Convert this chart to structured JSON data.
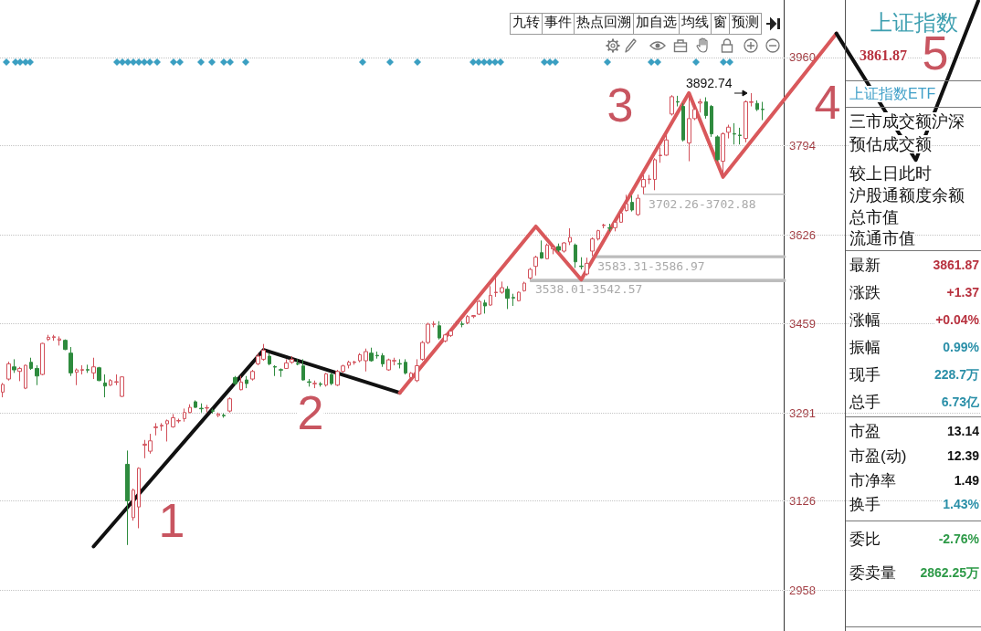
{
  "chart_data": [
    {
      "type": "candlestick",
      "categories": [
        null,
        null,
        null,
        null,
        null,
        null,
        null,
        null,
        null,
        null,
        null,
        null,
        null,
        null,
        null,
        null,
        null,
        null,
        null,
        null,
        null,
        null,
        null,
        null,
        null,
        null,
        null,
        null,
        null,
        null,
        null,
        null,
        null,
        null,
        null,
        null,
        null,
        null,
        null,
        null,
        null,
        null,
        null,
        null,
        null,
        null,
        null,
        null,
        null,
        null,
        null,
        null,
        null,
        null,
        null,
        null,
        null,
        null,
        null,
        null,
        null,
        null,
        null,
        null,
        null,
        null,
        null,
        null,
        null,
        null,
        null,
        null,
        null,
        null,
        null,
        null,
        null,
        null,
        null,
        null,
        null,
        null,
        null,
        null,
        null,
        null,
        null,
        null,
        null,
        null,
        null,
        null,
        null,
        null,
        null,
        null,
        null,
        null,
        null,
        null,
        null,
        null,
        null,
        null,
        null,
        null,
        null,
        null,
        null,
        null,
        null,
        null,
        null,
        null,
        null,
        null,
        null,
        null,
        null,
        null,
        null,
        null,
        null,
        null,
        null,
        null,
        null,
        null,
        null,
        null,
        null,
        null,
        null,
        null,
        null,
        null,
        null,
        null,
        null,
        null,
        null,
        null,
        null,
        null,
        null,
        null,
        null,
        null,
        null,
        null,
        null,
        null,
        null,
        null,
        null,
        null,
        null,
        null,
        null,
        null,
        null,
        null,
        null,
        null,
        null,
        null,
        null,
        null,
        null,
        null,
        null,
        null,
        null
      ],
      "ohlc": [
        [
          3330.4,
          3347.6,
          3320.6,
          3344.7
        ],
        [
          3355.0,
          3387.6,
          3352.1,
          3383.6
        ],
        [
          3377.9,
          3392.2,
          3366.5,
          3372.2
        ],
        [
          3369.3,
          3377.9,
          3351.0,
          3375.0
        ],
        [
          3337.8,
          3382.0,
          3336.0,
          3380.8
        ],
        [
          3386.5,
          3395.1,
          3372.2,
          3375.0
        ],
        [
          3375.0,
          3380.8,
          3343.5,
          3360.7
        ],
        [
          3363.6,
          3423.0,
          3362.0,
          3422.0
        ],
        [
          3429.5,
          3438.1,
          3426.6,
          3433.5
        ],
        [
          3433.0,
          3438.1,
          3427.0,
          3434.5
        ],
        [
          3428.0,
          3435.2,
          3418.0,
          3430.5
        ],
        [
          3427.8,
          3429.5,
          3409.4,
          3410.6
        ],
        [
          3403.7,
          3415.2,
          3360.7,
          3366.5
        ],
        [
          3367.6,
          3375.0,
          3343.5,
          3372.2
        ],
        [
          3371.5,
          3380.8,
          3363.6,
          3372.8
        ],
        [
          3372.8,
          3381.9,
          3366.5,
          3371.8
        ],
        [
          3366.5,
          3395.1,
          3355.0,
          3377.9
        ],
        [
          3376.2,
          3377.9,
          3351.0,
          3352.1
        ],
        [
          3347.6,
          3363.6,
          3320.6,
          3341.8
        ],
        [
          3343.5,
          3355.0,
          3341.8,
          3352.1
        ],
        [
          3349.0,
          3363.6,
          3343.5,
          3350.0
        ],
        [
          3322.4,
          3360.0,
          3321.0,
          3359.0
        ],
        [
          3194.6,
          3220.4,
          3042.8,
          3125.8
        ],
        [
          3094.3,
          3148.8,
          3088.6,
          3145.9
        ],
        [
          3114.4,
          3188.9,
          3074.3,
          3187.1
        ],
        [
          3230.5,
          3240.4,
          3206.0,
          3232.5
        ],
        [
          3219.2,
          3251.9,
          3214.6,
          3238.7
        ],
        [
          3263.5,
          3272.0,
          3249.0,
          3265.0
        ],
        [
          3266.5,
          3272.0,
          3257.6,
          3268.0
        ],
        [
          3270.8,
          3278.8,
          3237.5,
          3276.5
        ],
        [
          3265.1,
          3289.1,
          3263.3,
          3282.2
        ],
        [
          3276.0,
          3280.5,
          3272.0,
          3277.0
        ],
        [
          3280.5,
          3299.4,
          3274.8,
          3292.0
        ],
        [
          3292.0,
          3307.5,
          3290.8,
          3301.7
        ],
        [
          3312.2,
          3314.9,
          3300.6,
          3301.7
        ],
        [
          3300.0,
          3309.2,
          3292.0,
          3299.0
        ],
        [
          3300.3,
          3306.3,
          3292.0,
          3301.2
        ],
        [
          3295.5,
          3299.0,
          3290.0,
          3294.5
        ],
        [
          3286.3,
          3292.0,
          3283.4,
          3289.1
        ],
        [
          3286.8,
          3290.3,
          3282.2,
          3285.8
        ],
        [
          3294.8,
          3320.6,
          3292.0,
          3317.8
        ],
        [
          3357.9,
          3360.7,
          3343.5,
          3346.4
        ],
        [
          3334.9,
          3360.7,
          3333.8,
          3349.3
        ],
        [
          3353.3,
          3360.7,
          3337.8,
          3346.4
        ],
        [
          3355.0,
          3372.2,
          3352.1,
          3369.3
        ],
        [
          3383.6,
          3403.7,
          3380.8,
          3398.0
        ],
        [
          3392.2,
          3420.9,
          3389.4,
          3409.4
        ],
        [
          3398.0,
          3403.7,
          3380.8,
          3383.6
        ],
        [
          3378.5,
          3380.8,
          3360.7,
          3377.3
        ],
        [
          3372.7,
          3375.0,
          3359.0,
          3371.7
        ],
        [
          3375.0,
          3392.2,
          3374.4,
          3385.4
        ],
        [
          3386.5,
          3398.0,
          3383.6,
          3392.2
        ],
        [
          3384.2,
          3392.2,
          3380.8,
          3383.0
        ],
        [
          3379.6,
          3392.2,
          3352.1,
          3353.3
        ],
        [
          3349.8,
          3355.0,
          3340.7,
          3348.8
        ],
        [
          3346.0,
          3352.1,
          3337.8,
          3347.0
        ],
        [
          3345.8,
          3349.3,
          3340.7,
          3344.8
        ],
        [
          3343.5,
          3366.5,
          3340.7,
          3364.7
        ],
        [
          3363.6,
          3366.5,
          3343.5,
          3346.4
        ],
        [
          3343.5,
          3372.2,
          3341.8,
          3369.3
        ],
        [
          3369.3,
          3381.9,
          3366.5,
          3379.6
        ],
        [
          3380.8,
          3389.4,
          3375.0,
          3386.5
        ],
        [
          3386.0,
          3389.4,
          3381.9,
          3387.0
        ],
        [
          3389.4,
          3403.7,
          3386.5,
          3400.8
        ],
        [
          3389.4,
          3412.3,
          3369.3,
          3406.6
        ],
        [
          3403.7,
          3414.0,
          3387.6,
          3389.4
        ],
        [
          3399.6,
          3406.6,
          3393.4,
          3398.6
        ],
        [
          3399.1,
          3403.7,
          3377.9,
          3383.6
        ],
        [
          3372.2,
          3393.4,
          3370.5,
          3391.1
        ],
        [
          3388.9,
          3395.1,
          3380.8,
          3389.9
        ],
        [
          3384.1,
          3392.2,
          3375.0,
          3383.1
        ],
        [
          3386.5,
          3392.2,
          3363.5,
          3366.4
        ],
        [
          3358.0,
          3368.0,
          3352.0,
          3366.0
        ],
        [
          3352.0,
          3392.2,
          3349.2,
          3380.0
        ],
        [
          3392.2,
          3426.6,
          3389.3,
          3423.7
        ],
        [
          3423.7,
          3460.9,
          3420.8,
          3458.1
        ],
        [
          3457.6,
          3463.8,
          3452.3,
          3458.6
        ],
        [
          3455.2,
          3463.8,
          3429.4,
          3432.3
        ],
        [
          3426.6,
          3440.0,
          3424.0,
          3438.0
        ],
        [
          3437.0,
          3448.0,
          3434.0,
          3445.0
        ],
        [
          3460.5,
          3463.8,
          3455.2,
          3461.5
        ],
        [
          3458.6,
          3463.8,
          3452.3,
          3457.6
        ],
        [
          3460.9,
          3475.3,
          3458.1,
          3472.4
        ],
        [
          3472.5,
          3475.3,
          3469.5,
          3474.5
        ],
        [
          3477.0,
          3503.9,
          3475.3,
          3501.0
        ],
        [
          3498.2,
          3503.9,
          3478.1,
          3492.5
        ],
        [
          3494.2,
          3529.7,
          3492.5,
          3512.5
        ],
        [
          3517.4,
          3549.7,
          3509.6,
          3518.4
        ],
        [
          3518.2,
          3538.3,
          3515.4,
          3526.8
        ],
        [
          3523.9,
          3529.7,
          3486.7,
          3506.8
        ],
        [
          3508.4,
          3515.4,
          3492.5,
          3507.4
        ],
        [
          3502.2,
          3519.4,
          3501.0,
          3518.2
        ],
        [
          3521.1,
          3538.01,
          3519.4,
          3535.4
        ],
        [
          3545.0,
          3564.1,
          3542.57,
          3561.2
        ],
        [
          3566.9,
          3587.0,
          3549.7,
          3584.1
        ],
        [
          3592.7,
          3615.6,
          3581.3,
          3582.4
        ],
        [
          3581.3,
          3609.9,
          3580.1,
          3607.0
        ],
        [
          3600.0,
          3604.2,
          3589.8,
          3602.5
        ],
        [
          3604.2,
          3609.9,
          3593.9,
          3597.3
        ],
        [
          3595.6,
          3612.8,
          3592.7,
          3611.0
        ],
        [
          3612.8,
          3638.5,
          3607.0,
          3621.4
        ],
        [
          3607.0,
          3609.9,
          3564.1,
          3575.5
        ],
        [
          3567.5,
          3584.1,
          3561.2,
          3566.5
        ],
        [
          3552.6,
          3583.31,
          3549.7,
          3572.7
        ],
        [
          3595.6,
          3621.4,
          3586.97,
          3618.5
        ],
        [
          3618.5,
          3635.7,
          3615.6,
          3634.0
        ],
        [
          3643.7,
          3647.1,
          3638.5,
          3644.7
        ],
        [
          3639.5,
          3647.1,
          3632.8,
          3638.5
        ],
        [
          3639.7,
          3652.9,
          3632.8,
          3650.0
        ],
        [
          3650.0,
          3670.0,
          3648.9,
          3667.2
        ],
        [
          3671.8,
          3701.6,
          3670.1,
          3684.5
        ],
        [
          3687.3,
          3700.0,
          3670.1,
          3673.0
        ],
        [
          3664.3,
          3702.26,
          3662.0,
          3695.0
        ],
        [
          3716.0,
          3738.9,
          3702.88,
          3730.3
        ],
        [
          3730.3,
          3738.9,
          3721.7,
          3731.3
        ],
        [
          3730.3,
          3770.4,
          3710.2,
          3767.5
        ],
        [
          3775.1,
          3790.4,
          3761.8,
          3776.1
        ],
        [
          3776.1,
          3816.2,
          3775.0,
          3804.8
        ],
        [
          3853.5,
          3889.0,
          3850.6,
          3886.1
        ],
        [
          3876.9,
          3887.8,
          3867.8,
          3875.9
        ],
        [
          3867.8,
          3873.5,
          3801.9,
          3804.8
        ],
        [
          3799.0,
          3890.0,
          3764.7,
          3844.9
        ],
        [
          3844.9,
          3873.5,
          3842.0,
          3862.1
        ],
        [
          3874.0,
          3882.1,
          3856.3,
          3876.4
        ],
        [
          3876.4,
          3885.0,
          3844.9,
          3850.6
        ],
        [
          3867.8,
          3870.6,
          3810.5,
          3816.2
        ],
        [
          3810.5,
          3813.4,
          3764.7,
          3767.5
        ],
        [
          3764.7,
          3819.1,
          3736.0,
          3816.2
        ],
        [
          3819.1,
          3833.4,
          3807.6,
          3828.8
        ],
        [
          3816.7,
          3836.3,
          3796.2,
          3815.7
        ],
        [
          3813.9,
          3827.7,
          3796.2,
          3812.9
        ],
        [
          3807.6,
          3879.2,
          3800.2,
          3876.4
        ],
        [
          3875.4,
          3892.74,
          3867.8,
          3876.4
        ],
        [
          3873.5,
          3879.2,
          3859.2,
          3862.1
        ],
        [
          3862.5,
          3876.4,
          3842.0,
          3861.87
        ],
        null,
        null,
        null,
        null,
        null,
        null,
        null,
        null,
        null,
        null,
        null,
        null,
        null,
        null,
        null,
        null,
        null,
        null,
        null,
        null,
        null,
        null,
        null,
        null,
        null,
        null,
        null,
        null,
        null,
        null,
        null,
        null,
        null,
        null,
        null,
        null,
        null,
        null
      ],
      "colors": [
        "#d2505a",
        "#d2505a",
        "#2e8b3e",
        "#d2505a",
        "#d2505a",
        "#2e8b3e",
        "#2e8b3e",
        "#d2505a",
        "#d2505a",
        "#d2505a",
        "#d2505a",
        "#2e8b3e",
        "#2e8b3e",
        "#d2505a",
        "#d2505a",
        "#2e8b3e",
        "#d2505a",
        "#2e8b3e",
        "#2e8b3e",
        "#d2505a",
        "#d2505a",
        "#d2505a",
        "#2e8b3e",
        "#d2505a",
        "#d2505a",
        "#d2505a",
        "#d2505a",
        "#d2505a",
        "#d2505a",
        "#d2505a",
        "#d2505a",
        "#d2505a",
        "#d2505a",
        "#d2505a",
        "#2e8b3e",
        "#2e8b3e",
        "#d2505a",
        "#2e8b3e",
        "#d2505a",
        "#2e8b3e",
        "#d2505a",
        "#2e8b3e",
        "#d2505a",
        "#2e8b3e",
        "#d2505a",
        "#d2505a",
        "#d2505a",
        "#2e8b3e",
        "#2e8b3e",
        "#2e8b3e",
        "#d2505a",
        "#d2505a",
        "#2e8b3e",
        "#2e8b3e",
        "#2e8b3e",
        "#d2505a",
        "#2e8b3e",
        "#d2505a",
        "#2e8b3e",
        "#d2505a",
        "#d2505a",
        "#d2505a",
        "#d2505a",
        "#d2505a",
        "#d2505a",
        "#2e8b3e",
        "#2e8b3e",
        "#2e8b3e",
        "#d2505a",
        "#d2505a",
        "#2e8b3e",
        "#2e8b3e",
        "#d2505a",
        "#d2505a",
        "#d2505a",
        "#d2505a",
        "#d2505a",
        "#2e8b3e",
        "#d2505a",
        "#d2505a",
        "#d2505a",
        "#2e8b3e",
        "#d2505a",
        "#d2505a",
        "#d2505a",
        "#2e8b3e",
        "#d2505a",
        "#d2505a",
        "#d2505a",
        "#2e8b3e",
        "#2e8b3e",
        "#d2505a",
        "#d2505a",
        "#d2505a",
        "#d2505a",
        "#2e8b3e",
        "#d2505a",
        "#d2505a",
        "#2e8b3e",
        "#d2505a",
        "#d2505a",
        "#2e8b3e",
        "#2e8b3e",
        "#d2505a",
        "#d2505a",
        "#d2505a",
        "#d2505a",
        "#2e8b3e",
        "#d2505a",
        "#d2505a",
        "#d2505a",
        "#2e8b3e",
        "#d2505a",
        "#d2505a",
        "#d2505a",
        "#d2505a",
        "#d2505a",
        "#d2505a",
        "#d2505a",
        "#2e8b3e",
        "#2e8b3e",
        "#d2505a",
        "#d2505a",
        "#d2505a",
        "#2e8b3e",
        "#2e8b3e",
        "#2e8b3e",
        "#d2505a",
        "#d2505a",
        "#2e8b3e",
        "#2e8b3e",
        "#d2505a",
        "#d2505a",
        "#2e8b3e",
        "#2e8b3e",
        null,
        null,
        null,
        null,
        null,
        null,
        null,
        null,
        null,
        null,
        null,
        null,
        null,
        null,
        null,
        null,
        null,
        null,
        null,
        null,
        null,
        null,
        null,
        null,
        null,
        null,
        null,
        null,
        null,
        null,
        null,
        null,
        null,
        null,
        null,
        null,
        null,
        null
      ],
      "series": [
        {
          "type": "line",
          "color": "#111111",
          "values": [
            null,
            null,
            null,
            null,
            null,
            null,
            null,
            null,
            null,
            null,
            null,
            null,
            null,
            null,
            null,
            null,
            3040,
            null,
            null,
            null,
            null,
            null,
            null,
            null,
            null,
            null,
            null,
            null,
            null,
            null,
            null,
            null,
            null,
            null,
            null,
            null,
            null,
            null,
            null,
            null,
            null,
            null,
            null,
            null,
            null,
            null,
            3410,
            null,
            null,
            null,
            null,
            null,
            null,
            null,
            null,
            null,
            null,
            null,
            null,
            null,
            null,
            null,
            null,
            null,
            null,
            null,
            null,
            null,
            null,
            null,
            3329,
            null,
            null,
            null,
            null,
            null,
            null,
            null,
            null,
            null,
            null,
            null,
            null,
            null,
            null,
            null,
            null,
            null,
            null,
            null,
            null,
            null,
            null,
            null,
            null,
            null,
            null,
            null,
            null,
            null,
            null,
            null,
            null,
            null,
            null,
            null,
            null,
            null,
            null,
            null,
            null,
            null,
            null,
            null,
            null,
            null,
            null,
            null,
            null,
            null,
            null,
            null,
            null,
            null,
            null,
            null,
            null,
            null,
            null,
            null,
            null,
            null,
            null,
            null,
            null,
            null,
            null,
            null,
            null,
            null,
            null,
            null,
            null,
            null,
            null,
            null,
            null,
            null,
            null,
            null,
            null,
            null,
            null,
            null,
            null,
            null,
            null,
            null,
            null,
            null,
            null,
            null,
            null,
            null,
            null,
            null,
            null,
            null,
            null,
            null,
            null,
            null,
            null
          ]
        },
        {
          "type": "line",
          "color": "#d9585b",
          "values": [
            null,
            null,
            null,
            null,
            null,
            null,
            null,
            null,
            null,
            null,
            null,
            null,
            null,
            null,
            null,
            null,
            null,
            null,
            null,
            null,
            null,
            null,
            null,
            null,
            null,
            null,
            null,
            null,
            null,
            null,
            null,
            null,
            null,
            null,
            null,
            null,
            null,
            null,
            null,
            null,
            null,
            null,
            null,
            null,
            null,
            null,
            null,
            null,
            null,
            null,
            null,
            null,
            null,
            null,
            null,
            null,
            null,
            null,
            null,
            null,
            null,
            null,
            null,
            null,
            null,
            null,
            null,
            null,
            null,
            null,
            3329,
            null,
            null,
            null,
            null,
            null,
            null,
            null,
            null,
            null,
            null,
            null,
            null,
            null,
            null,
            null,
            null,
            null,
            null,
            null,
            null,
            null,
            null,
            null,
            3642,
            null,
            null,
            null,
            null,
            null,
            null,
            null,
            3542,
            null,
            null,
            null,
            null,
            null,
            null,
            null,
            null,
            null,
            null,
            null,
            null,
            null,
            null,
            null,
            null,
            null,
            null,
            3893,
            null,
            null,
            null,
            null,
            null,
            3735,
            null,
            null,
            null,
            null,
            null,
            null,
            null,
            null,
            null,
            null,
            null,
            null,
            null,
            null,
            null,
            null,
            null,
            null,
            null,
            4005,
            null,
            null,
            null,
            null,
            null,
            null,
            null,
            null,
            null,
            null,
            null,
            null,
            null,
            null,
            null,
            null,
            null,
            null,
            null,
            null,
            null,
            null,
            null,
            null,
            null
          ]
        },
        {
          "type": "line",
          "color": "#111111",
          "values": [
            null,
            null,
            null,
            null,
            null,
            null,
            null,
            null,
            null,
            null,
            null,
            null,
            null,
            null,
            null,
            null,
            null,
            null,
            null,
            null,
            null,
            null,
            null,
            null,
            null,
            null,
            null,
            null,
            null,
            null,
            null,
            null,
            null,
            null,
            null,
            null,
            null,
            null,
            null,
            null,
            null,
            null,
            null,
            null,
            null,
            null,
            null,
            null,
            null,
            null,
            null,
            null,
            null,
            null,
            null,
            null,
            null,
            null,
            null,
            null,
            null,
            null,
            null,
            null,
            null,
            null,
            null,
            null,
            null,
            null,
            null,
            null,
            null,
            null,
            null,
            null,
            null,
            null,
            null,
            null,
            null,
            null,
            null,
            null,
            null,
            null,
            null,
            null,
            null,
            null,
            null,
            null,
            null,
            null,
            null,
            null,
            null,
            null,
            null,
            null,
            null,
            null,
            null,
            null,
            null,
            null,
            null,
            null,
            null,
            null,
            null,
            null,
            null,
            null,
            null,
            null,
            null,
            null,
            null,
            null,
            null,
            null,
            null,
            null,
            null,
            null,
            null,
            null,
            null,
            null,
            null,
            null,
            null,
            null,
            null,
            null,
            null,
            null,
            null,
            null,
            null,
            null,
            null,
            null,
            null,
            null,
            null,
            4005,
            null,
            null,
            null,
            null,
            null,
            null,
            null,
            null,
            null,
            null,
            null,
            null,
            null,
            3767,
            null,
            null,
            null,
            null,
            null,
            null,
            null,
            null,
            null,
            null,
            4066
          ]
        }
      ],
      "bands": [
        {
          "axis": "y",
          "from": 3538.01,
          "to": 3542.57,
          "label": "3538.01-3542.57",
          "color": "#bdbdbd"
        },
        {
          "axis": "y",
          "from": 3583.31,
          "to": 3586.97,
          "label": "3583.31-3586.97",
          "color": "#bdbdbd"
        },
        {
          "axis": "y",
          "from": 3702.26,
          "to": 3702.88,
          "label": "3702.26-3702.88",
          "color": "#bdbdbd"
        }
      ],
      "annotations": [
        "3892.74",
        "1",
        "2",
        "3",
        "4",
        "5"
      ],
      "ylim": [
        2881,
        4068
      ],
      "yticks": [
        2958,
        3126,
        3291,
        3459,
        3626,
        3794,
        3960
      ],
      "grid": "y",
      "tick_labels": "y"
    },
    {
      "type": "other",
      "annotations": [
        "九转",
        "事件",
        "热点回溯",
        "加自选",
        "均线",
        "窗",
        "预测"
      ]
    },
    {
      "type": "other",
      "title": "上证指数",
      "subtitle": "3861.87",
      "annotations": [
        "上证指数ETF",
        "三市成交额沪深",
        "预估成交额",
        "较上日此时",
        "沪股通额度余额",
        "总市值",
        "流通市值",
        "最新",
        "3861.87",
        "涨跌",
        "+1.37",
        "涨幅",
        "+0.04%",
        "振幅",
        "0.99%",
        "现手",
        "228.7万",
        "总手",
        "6.73亿",
        "市盈",
        "13.14",
        "市盈(动)",
        "12.39",
        "市净率",
        "1.49",
        "换手",
        "1.43%",
        "委比",
        "-2.76%",
        "委卖量",
        "2862.25万"
      ],
      "colors": [
        "#3f9fc8",
        "#111111",
        "#111111",
        "#111111",
        "#111111",
        "#111111",
        "#111111",
        "#111111",
        "#b8323f",
        "#111111",
        "#b8323f",
        "#111111",
        "#b8323f",
        "#111111",
        "#2a8fa8",
        "#111111",
        "#2a8fa8",
        "#111111",
        "#2a8fa8",
        "#111111",
        "#111111",
        "#111111",
        "#111111",
        "#111111",
        "#111111",
        "#111111",
        "#2a8fa8",
        "#111111",
        "#2e9a48",
        "#111111",
        "#2e9a48"
      ]
    }
  ]
}
